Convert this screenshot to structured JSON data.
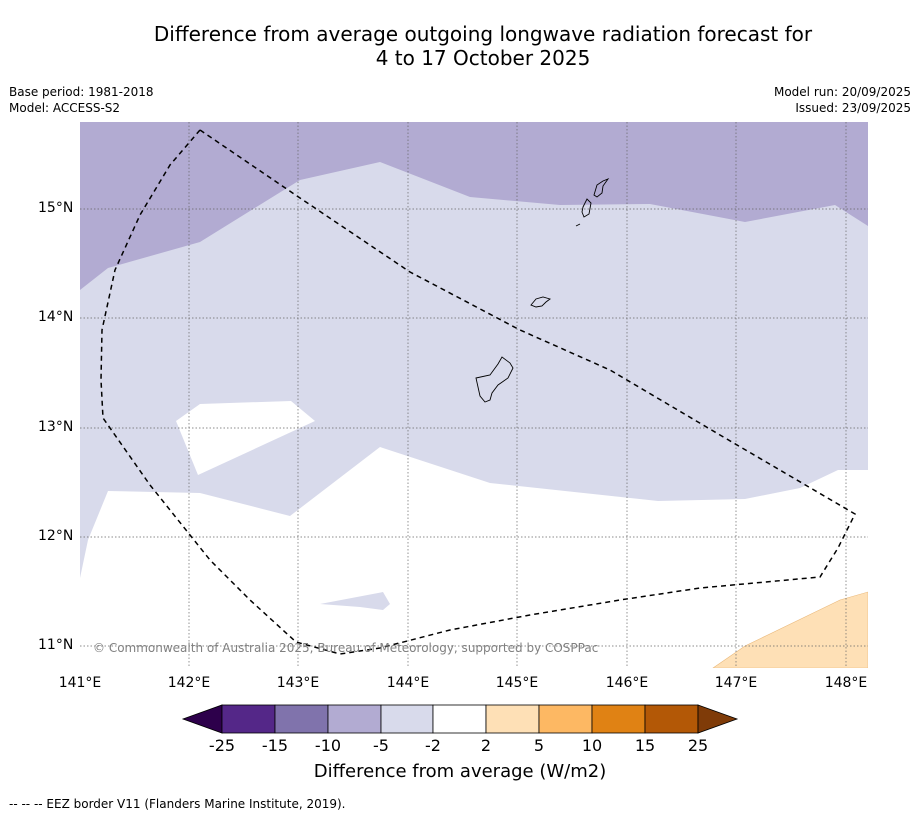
{
  "title": {
    "line1": "Difference from average outgoing longwave radiation forecast for",
    "line2": "4 to 17 October 2025"
  },
  "meta": {
    "base_period": "Base period: 1981-2018",
    "model": "Model: ACCESS-S2",
    "model_run": "Model run: 20/09/2025",
    "issued": "Issued: 23/09/2025"
  },
  "map": {
    "lat_labels": [
      "15°N",
      "14°N",
      "13°N",
      "12°N",
      "11°N"
    ],
    "lon_labels": [
      "141°E",
      "142°E",
      "143°E",
      "144°E",
      "145°E",
      "146°E",
      "147°E",
      "148°E"
    ],
    "copyright": "© Commonwealth of Australia 2025, Bureau of Meteorology, supported by COSPPac"
  },
  "colorbar": {
    "title": "Difference from average (W/m2)",
    "tick_labels": [
      "-25",
      "-15",
      "-10",
      "-5",
      "-2",
      "2",
      "5",
      "10",
      "15",
      "25"
    ],
    "colors": {
      "lt_-25": "#2d004b",
      "-25_-15": "#542788",
      "-15_-10": "#8073ac",
      "-10_-5": "#b2abd2",
      "-5_-2": "#d8daeb",
      "-2_2": "#ffffff",
      "2_5": "#fee0b6",
      "5_10": "#fdb863",
      "10_15": "#e08214",
      "15_25": "#b35806",
      "gt_25": "#7f3b08"
    }
  },
  "footnote": "--  --  -- EEZ border V11 (Flanders Marine Institute, 2019)."
}
